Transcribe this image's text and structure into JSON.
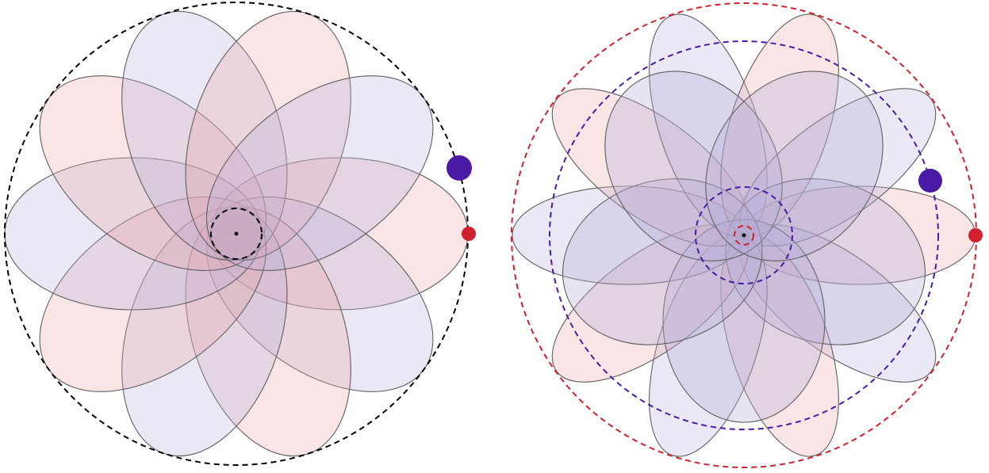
{
  "colors": {
    "red": "#d2202f",
    "purple": "#4a1aa6",
    "black": "#000000",
    "red_fill": "#e8a0a6",
    "purple_fill": "#b3acd8",
    "ellipse_stroke": "#5f5f5f"
  },
  "diagrams": [
    {
      "name": "left-diagram",
      "outer_orbit_color": "black",
      "inner_orbit_color": "black",
      "ellipse_count": 10,
      "red_marker": "red",
      "purple_marker": "purple"
    },
    {
      "name": "right-diagram",
      "outer_orbit_color": "red",
      "middle_orbit_color": "purple",
      "inner_orbit_colors": [
        "purple",
        "red"
      ],
      "ellipse_count": 10,
      "red_marker": "red",
      "purple_marker": "purple"
    }
  ]
}
